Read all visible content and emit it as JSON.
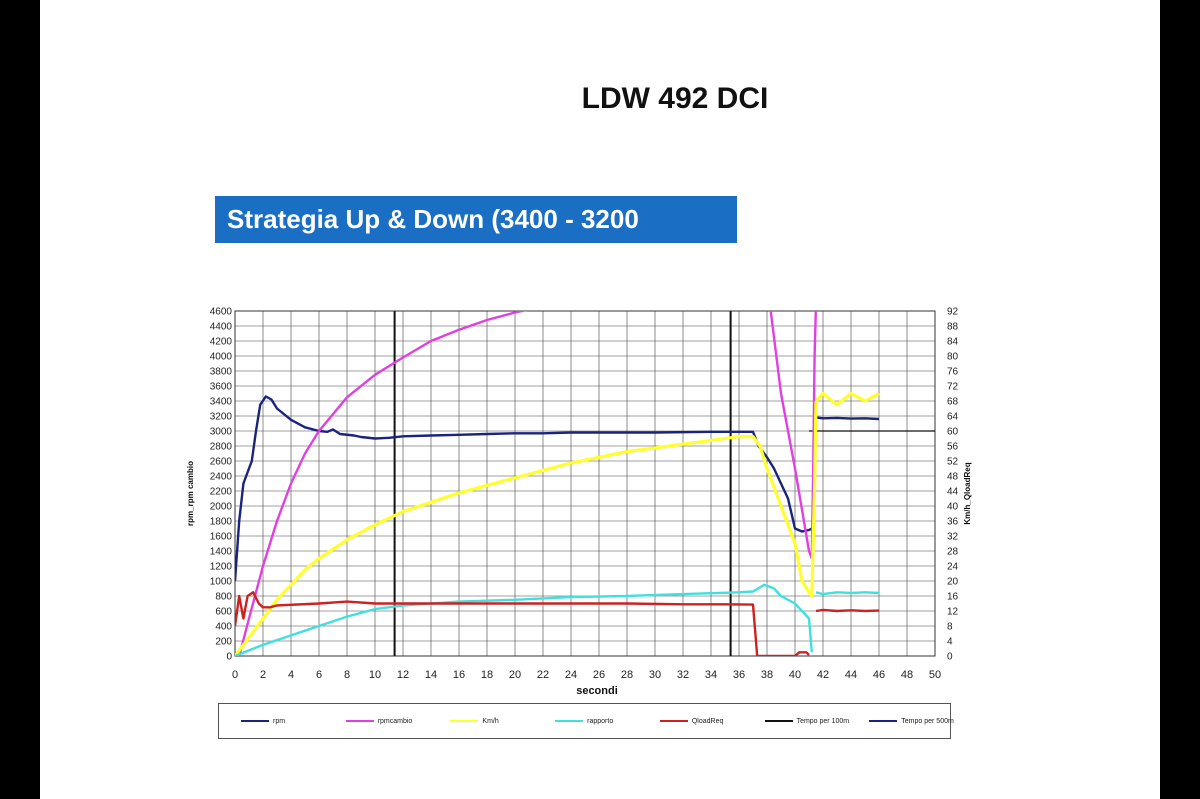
{
  "title": "LDW 492 DCI",
  "banner": "Strategia  Up & Down (3400 - 3200",
  "chart_data": {
    "type": "line",
    "xlabel": "secondi",
    "ylabel_left": "rpm_rpm cambio",
    "ylabel_right": "Km/h_QloadReq",
    "xlim": [
      0,
      50
    ],
    "ylim_left": [
      0,
      4600
    ],
    "ylim_right": [
      0,
      92
    ],
    "x_ticks": [
      0,
      2,
      4,
      6,
      8,
      10,
      12,
      14,
      16,
      18,
      20,
      22,
      24,
      26,
      28,
      30,
      32,
      34,
      36,
      38,
      40,
      42,
      44,
      46,
      48,
      50
    ],
    "y_ticks_left": [
      0,
      200,
      400,
      600,
      800,
      1000,
      1200,
      1400,
      1600,
      1800,
      2000,
      2200,
      2400,
      2600,
      2800,
      3000,
      3200,
      3400,
      3600,
      3800,
      4000,
      4200,
      4400,
      4600
    ],
    "y_ticks_right": [
      0,
      4,
      8,
      12,
      16,
      20,
      24,
      28,
      32,
      36,
      40,
      44,
      48,
      52,
      56,
      60,
      64,
      68,
      72,
      76,
      80,
      84,
      88,
      92
    ],
    "grid": true,
    "legend_position": "bottom",
    "series": [
      {
        "name": "rpm",
        "axis": "left",
        "color": "#1a237e",
        "points": [
          [
            0,
            1000
          ],
          [
            0.3,
            1800
          ],
          [
            0.6,
            2300
          ],
          [
            1.2,
            2600
          ],
          [
            1.5,
            3000
          ],
          [
            1.8,
            3350
          ],
          [
            2.2,
            3460
          ],
          [
            2.6,
            3420
          ],
          [
            3,
            3300
          ],
          [
            4,
            3150
          ],
          [
            5,
            3050
          ],
          [
            6,
            3000
          ],
          [
            6.6,
            2990
          ],
          [
            7,
            3020
          ],
          [
            7.5,
            2960
          ],
          [
            8.5,
            2940
          ],
          [
            9,
            2920
          ],
          [
            10,
            2900
          ],
          [
            11,
            2910
          ],
          [
            12,
            2930
          ],
          [
            14,
            2940
          ],
          [
            16,
            2950
          ],
          [
            18,
            2960
          ],
          [
            20,
            2970
          ],
          [
            22,
            2970
          ],
          [
            24,
            2980
          ],
          [
            26,
            2980
          ],
          [
            30,
            2980
          ],
          [
            34,
            2990
          ],
          [
            37,
            2990
          ],
          [
            37.4,
            2800
          ],
          [
            38,
            2650
          ],
          [
            38.5,
            2500
          ],
          [
            39,
            2300
          ],
          [
            39.5,
            2100
          ],
          [
            40,
            1700
          ],
          [
            40.5,
            1660
          ],
          [
            41,
            1680
          ],
          [
            41.2,
            1700
          ]
        ]
      },
      {
        "name": "",
        "axis": "left",
        "color": "#1a237e",
        "points": [
          [
            41.5,
            3180
          ],
          [
            42,
            3170
          ],
          [
            43,
            3175
          ],
          [
            44,
            3165
          ],
          [
            45,
            3170
          ],
          [
            46,
            3160
          ]
        ]
      },
      {
        "name": "rpmcambio",
        "axis": "left",
        "color": "#e040e0",
        "points": [
          [
            0.3,
            0
          ],
          [
            1,
            500
          ],
          [
            2,
            1200
          ],
          [
            3,
            1800
          ],
          [
            4,
            2300
          ],
          [
            5,
            2700
          ],
          [
            6,
            3000
          ],
          [
            8,
            3450
          ],
          [
            10,
            3750
          ],
          [
            12,
            3980
          ],
          [
            14,
            4200
          ],
          [
            16,
            4350
          ],
          [
            18,
            4480
          ],
          [
            20,
            4580
          ],
          [
            21.5,
            4640
          ]
        ]
      },
      {
        "name": "",
        "axis": "left",
        "color": "#e040e0",
        "points": [
          [
            38.2,
            4700
          ],
          [
            39,
            3500
          ],
          [
            40,
            2500
          ],
          [
            41,
            1400
          ],
          [
            41.2,
            1300
          ]
        ]
      },
      {
        "name": "",
        "axis": "left",
        "color": "#e040e0",
        "points": [
          [
            41.2,
            1300
          ],
          [
            41.3,
            2500
          ],
          [
            41.4,
            4000
          ],
          [
            41.5,
            4700
          ]
        ]
      },
      {
        "name": "Km/h",
        "axis": "right",
        "color": "#ffff2e",
        "points": [
          [
            0,
            0
          ],
          [
            1,
            5
          ],
          [
            2,
            10
          ],
          [
            3,
            15
          ],
          [
            4,
            19
          ],
          [
            5,
            23
          ],
          [
            6,
            26
          ],
          [
            8,
            31
          ],
          [
            10,
            35
          ],
          [
            12,
            38.5
          ],
          [
            14,
            41
          ],
          [
            16,
            43.5
          ],
          [
            18,
            45.5
          ],
          [
            20,
            47.5
          ],
          [
            22,
            49.5
          ],
          [
            24,
            51.5
          ],
          [
            26,
            53
          ],
          [
            28,
            54.5
          ],
          [
            30,
            55.5
          ],
          [
            32,
            56.5
          ],
          [
            34,
            57.5
          ],
          [
            36,
            58.5
          ],
          [
            37,
            58.5
          ],
          [
            37.5,
            56
          ],
          [
            38,
            50
          ],
          [
            39,
            40
          ],
          [
            40,
            30
          ],
          [
            40.5,
            20
          ],
          [
            41,
            17
          ],
          [
            41.2,
            16
          ],
          [
            41.4,
            45
          ],
          [
            41.5,
            68
          ]
        ]
      },
      {
        "name": "",
        "axis": "right",
        "color": "#ffff2e",
        "points": [
          [
            41.5,
            68
          ],
          [
            42,
            70
          ],
          [
            43,
            67
          ],
          [
            44,
            70
          ],
          [
            45,
            68
          ],
          [
            46,
            70
          ]
        ]
      },
      {
        "name": "rapporto",
        "axis": "right",
        "color": "#40e0e0",
        "points": [
          [
            0,
            0
          ],
          [
            1,
            1.5
          ],
          [
            2,
            3
          ],
          [
            4,
            5.5
          ],
          [
            6,
            8
          ],
          [
            8,
            10.5
          ],
          [
            10,
            12.5
          ],
          [
            12,
            13.5
          ],
          [
            16,
            14.5
          ],
          [
            20,
            15
          ],
          [
            24,
            15.7
          ],
          [
            28,
            16
          ],
          [
            32,
            16.5
          ],
          [
            36,
            17
          ],
          [
            37,
            17.2
          ],
          [
            37.8,
            19
          ],
          [
            38.5,
            18
          ],
          [
            39,
            16
          ],
          [
            40,
            14
          ],
          [
            41,
            10
          ],
          [
            41.2,
            1
          ]
        ]
      },
      {
        "name": "",
        "axis": "right",
        "color": "#40e0e0",
        "points": [
          [
            41.5,
            17
          ],
          [
            42,
            16.5
          ],
          [
            43,
            17
          ],
          [
            44,
            16.8
          ],
          [
            45,
            17
          ],
          [
            46,
            16.8
          ]
        ]
      },
      {
        "name": "QloadReq",
        "axis": "right",
        "color": "#cc2222",
        "points": [
          [
            0,
            8
          ],
          [
            0.3,
            16
          ],
          [
            0.6,
            10
          ],
          [
            0.9,
            16
          ],
          [
            1.3,
            17
          ],
          [
            1.7,
            14
          ],
          [
            2,
            13
          ],
          [
            2.5,
            13
          ],
          [
            3,
            13.5
          ],
          [
            6,
            14
          ],
          [
            8,
            14.5
          ],
          [
            10,
            14
          ],
          [
            12,
            14
          ],
          [
            16,
            14
          ],
          [
            20,
            14
          ],
          [
            24,
            14
          ],
          [
            28,
            14
          ],
          [
            32,
            13.8
          ],
          [
            35,
            13.8
          ],
          [
            37,
            13.7
          ],
          [
            37.3,
            0
          ],
          [
            40,
            0
          ],
          [
            40.3,
            1
          ],
          [
            40.8,
            1
          ],
          [
            41,
            0.3
          ]
        ]
      },
      {
        "name": "",
        "axis": "right",
        "color": "#cc2222",
        "points": [
          [
            41.5,
            12
          ],
          [
            42,
            12.3
          ],
          [
            43,
            12
          ],
          [
            44,
            12.2
          ],
          [
            45,
            12
          ],
          [
            46,
            12.1
          ]
        ]
      }
    ],
    "vertical_markers": [
      {
        "name": "Tempo per 100m",
        "x": 11.4,
        "color": "#111111"
      },
      {
        "name": "Tempo per 500m",
        "x": 35.4,
        "color": "#111111"
      }
    ],
    "horizontal_marker": {
      "axis": "left",
      "y": 3000,
      "x_from": 41,
      "x_to": 50,
      "color": "#111111"
    },
    "legend": [
      {
        "label": "rpm",
        "color": "#1a237e"
      },
      {
        "label": "rpmcambio",
        "color": "#e040e0"
      },
      {
        "label": "Km/h",
        "color": "#ffff2e"
      },
      {
        "label": "rapporto",
        "color": "#40e0e0"
      },
      {
        "label": "QloadReq",
        "color": "#cc2222"
      },
      {
        "label": "Tempo per 100m",
        "color": "#111111"
      },
      {
        "label": "Tempo per 500m",
        "color": "#1a237e"
      }
    ]
  }
}
